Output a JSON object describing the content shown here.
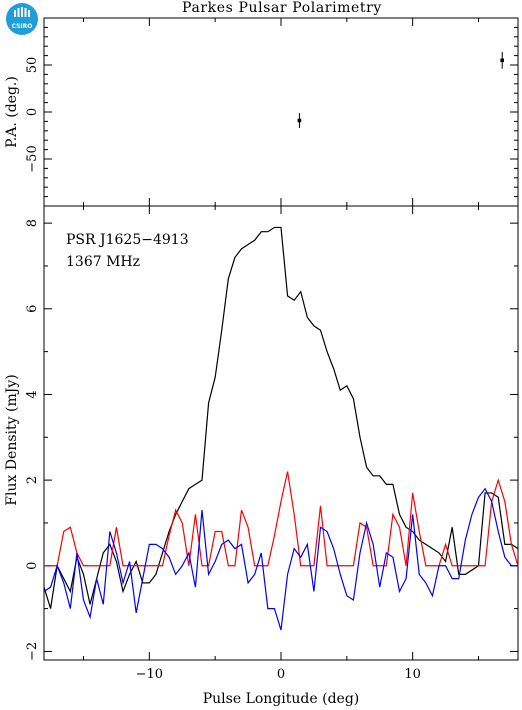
{
  "title": "Parkes Pulsar Polarimetry",
  "logo": {
    "text": "CSIRO",
    "color": "#1e9fd9"
  },
  "chart_data": [
    {
      "type": "scatter",
      "name": "position-angle",
      "ylabel": "P.A. (deg.)",
      "xlim": [
        -18,
        18
      ],
      "ylim": [
        -100,
        100
      ],
      "yticks": [
        -50,
        0,
        50
      ],
      "points": [
        {
          "x": 1.4,
          "y": -9,
          "err": 8
        },
        {
          "x": 16.8,
          "y": 55,
          "err": 9
        }
      ]
    },
    {
      "type": "line",
      "name": "flux-profile",
      "xlabel": "Pulse Longitude (deg)",
      "ylabel": "Flux Density (mJy)",
      "xlim": [
        -18,
        18
      ],
      "ylim": [
        -2.2,
        8.4
      ],
      "xticks": [
        -10,
        0,
        10
      ],
      "yticks": [
        -2,
        0,
        2,
        4,
        6,
        8
      ],
      "annotations": [
        "PSR J1625−4913",
        "1367 MHz"
      ],
      "x": [
        -18,
        -17.5,
        -17,
        -16.5,
        -16,
        -15.5,
        -15,
        -14.5,
        -14,
        -13.5,
        -13,
        -12.5,
        -12,
        -11.5,
        -11,
        -10.5,
        -10,
        -9.5,
        -9,
        -8.5,
        -8,
        -7.5,
        -7,
        -6.5,
        -6,
        -5.5,
        -5,
        -4.5,
        -4,
        -3.5,
        -3,
        -2.5,
        -2,
        -1.5,
        -1,
        -0.5,
        0,
        0.5,
        1,
        1.5,
        2,
        2.5,
        3,
        3.5,
        4,
        4.5,
        5,
        5.5,
        6,
        6.5,
        7,
        7.5,
        8,
        8.5,
        9,
        9.5,
        10,
        10.5,
        11,
        11.5,
        12,
        12.5,
        13,
        13.5,
        14,
        14.5,
        15,
        15.5,
        16,
        16.5,
        17,
        17.5,
        18
      ],
      "series": [
        {
          "color": "#000000",
          "values": [
            -0.5,
            -1.0,
            0.0,
            -0.3,
            -0.6,
            0.2,
            -0.2,
            -0.9,
            -0.3,
            0.3,
            0.5,
            0.1,
            -0.6,
            -0.2,
            0.1,
            -0.4,
            -0.4,
            -0.2,
            0.3,
            0.8,
            1.2,
            1.5,
            1.8,
            1.9,
            2.0,
            3.8,
            4.4,
            5.5,
            6.7,
            7.2,
            7.4,
            7.5,
            7.6,
            7.8,
            7.8,
            7.9,
            7.9,
            6.3,
            6.2,
            6.4,
            5.8,
            5.6,
            5.5,
            5.0,
            4.6,
            4.1,
            4.2,
            3.9,
            3.0,
            2.3,
            2.1,
            2.1,
            1.9,
            1.9,
            1.2,
            0.9,
            0.8,
            0.6,
            0.5,
            0.4,
            0.3,
            0.1,
            0.9,
            -0.2,
            -0.2,
            -0.1,
            0.0,
            1.7,
            1.7,
            1.6,
            0.5,
            0.5,
            0.4
          ]
        },
        {
          "color": "#ff0000",
          "values": [
            0.0,
            0.0,
            0.0,
            0.8,
            0.9,
            0.3,
            0.0,
            0.0,
            0.0,
            0.0,
            0.0,
            0.9,
            0.0,
            0.0,
            0.0,
            0.0,
            0.0,
            0.0,
            0.0,
            0.7,
            1.3,
            1.0,
            0.0,
            1.2,
            0.0,
            0.0,
            0.8,
            0.8,
            0.0,
            0.0,
            1.3,
            0.9,
            0.0,
            0.0,
            0.0,
            0.7,
            1.5,
            2.2,
            1.2,
            0.0,
            0.0,
            0.0,
            1.4,
            0.0,
            0.0,
            0.0,
            0.0,
            0.0,
            1.0,
            0.9,
            0.0,
            0.0,
            0.0,
            1.2,
            0.9,
            0.0,
            1.7,
            0.8,
            0.0,
            0.0,
            0.0,
            0.5,
            0.0,
            0.0,
            0.0,
            0.0,
            0.0,
            0.0,
            1.5,
            2.0,
            1.5,
            0.5,
            0.0
          ]
        },
        {
          "color": "#0000ff",
          "values": [
            -0.6,
            -0.5,
            0.0,
            -0.4,
            -1.0,
            0.3,
            -0.8,
            -1.2,
            -0.3,
            -0.9,
            0.8,
            0.3,
            -0.4,
            0.1,
            -1.1,
            -0.3,
            0.5,
            0.5,
            0.4,
            0.2,
            -0.2,
            0.0,
            0.3,
            -0.5,
            1.3,
            -0.2,
            0.1,
            0.5,
            0.6,
            0.4,
            0.5,
            -0.4,
            -0.2,
            0.3,
            -1.0,
            -1.0,
            -1.5,
            -0.2,
            0.4,
            0.2,
            0.5,
            -0.6,
            0.9,
            0.8,
            0.4,
            -0.2,
            -0.7,
            -0.8,
            0.3,
            1.0,
            0.5,
            -0.5,
            0.3,
            0.2,
            -0.6,
            -0.3,
            1.2,
            -0.2,
            -0.4,
            -0.7,
            0.0,
            0.0,
            -0.3,
            -0.3,
            0.6,
            1.2,
            1.6,
            1.8,
            1.5,
            0.8,
            0.2,
            0.0,
            0.0
          ]
        }
      ]
    }
  ]
}
